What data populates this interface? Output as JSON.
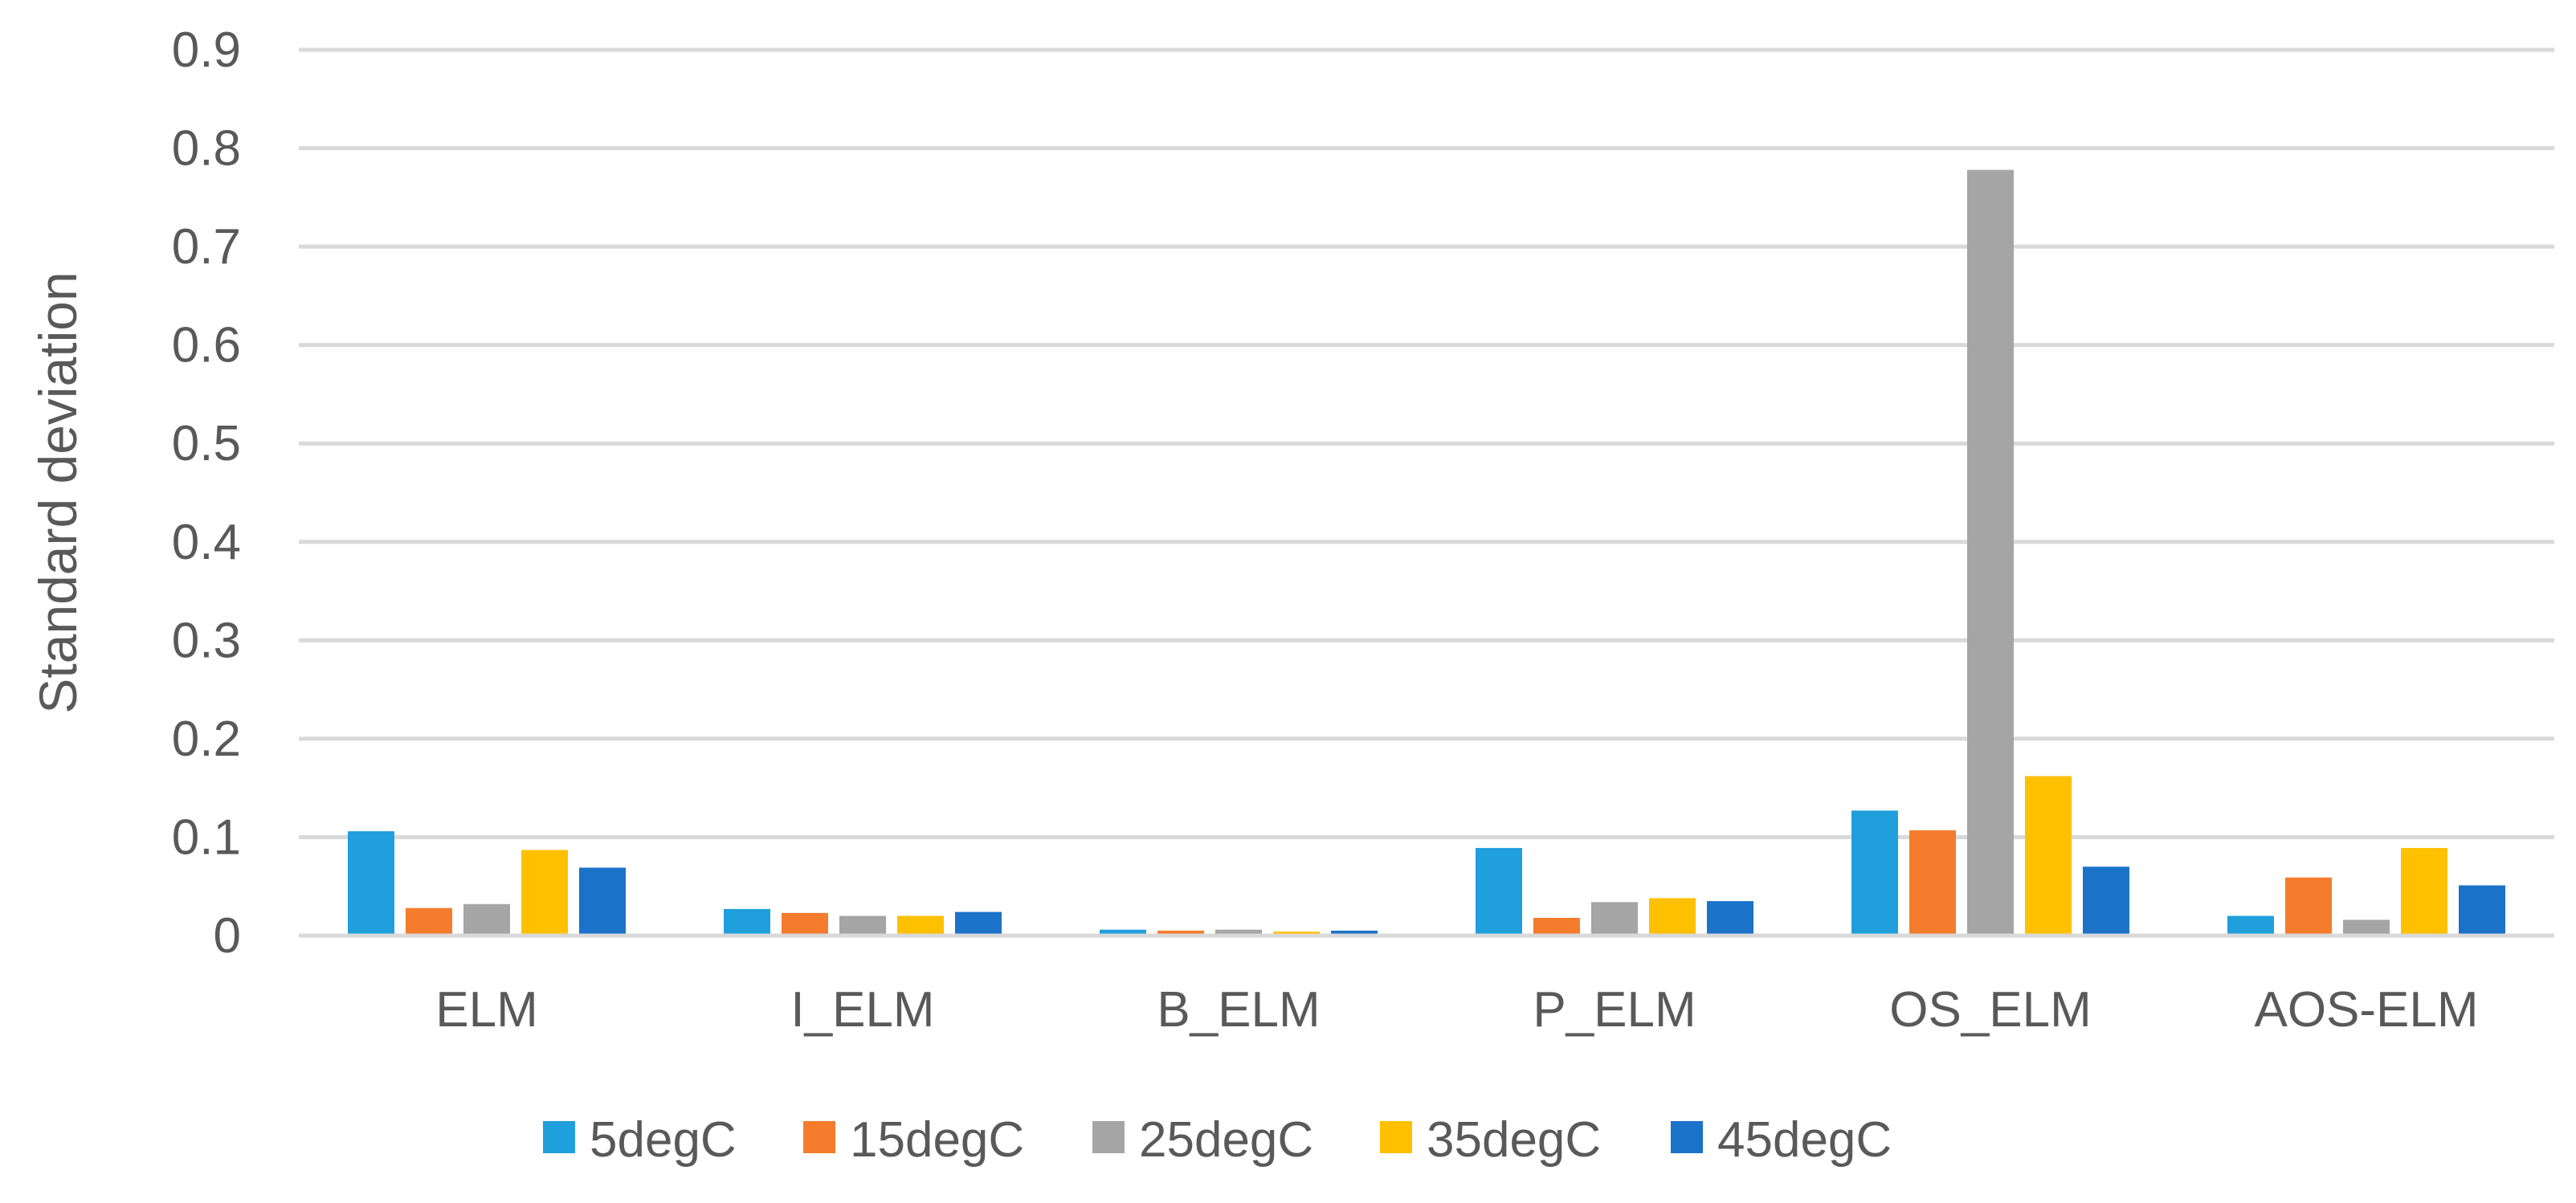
{
  "chart_data": {
    "type": "bar",
    "title": "",
    "xlabel": "",
    "ylabel": "Standard deviation",
    "ylim": [
      0,
      0.9
    ],
    "yticks": [
      "0",
      "0.1",
      "0.2",
      "0.3",
      "0.4",
      "0.5",
      "0.6",
      "0.7",
      "0.8",
      "0.9"
    ],
    "grid": true,
    "legend_position": "bottom",
    "categories": [
      "ELM",
      "I_ELM",
      "B_ELM",
      "P_ELM",
      "OS_ELM",
      "AOS-ELM"
    ],
    "series": [
      {
        "name": "5degC",
        "color": "#1F9FDC",
        "values": [
          0.106,
          0.027,
          0.006,
          0.089,
          0.127,
          0.02
        ]
      },
      {
        "name": "15degC",
        "color": "#F47C2C",
        "values": [
          0.028,
          0.023,
          0.005,
          0.018,
          0.107,
          0.059
        ]
      },
      {
        "name": "25degC",
        "color": "#A5A5A5",
        "values": [
          0.032,
          0.02,
          0.006,
          0.034,
          0.778,
          0.016
        ]
      },
      {
        "name": "35degC",
        "color": "#FFC000",
        "values": [
          0.087,
          0.02,
          0.004,
          0.038,
          0.162,
          0.089
        ]
      },
      {
        "name": "45degC",
        "color": "#1B72C9",
        "values": [
          0.069,
          0.024,
          0.005,
          0.035,
          0.07,
          0.051
        ]
      }
    ]
  }
}
